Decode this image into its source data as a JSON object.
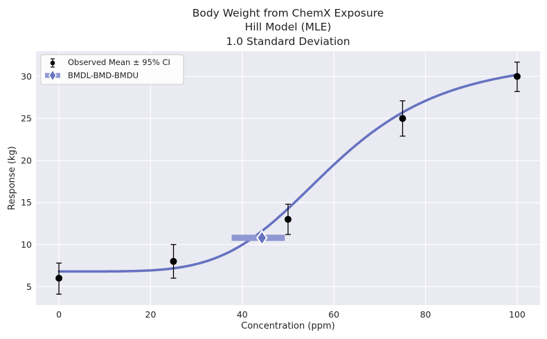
{
  "chart_data": {
    "type": "line",
    "title": [
      "Body Weight from ChemX Exposure",
      "Hill Model (MLE)",
      "1.0 Standard Deviation"
    ],
    "xlabel": "Concentration (ppm)",
    "ylabel": "Response (kg)",
    "xlim": [
      -5,
      105
    ],
    "ylim": [
      2.8,
      33
    ],
    "xticks": [
      0,
      20,
      40,
      60,
      80,
      100
    ],
    "yticks": [
      5,
      10,
      15,
      20,
      25,
      30
    ],
    "grid": true,
    "legend_position": "top-left",
    "legend": [
      "Observed Mean ± 95% CI",
      "BMDL-BMD-BMDU"
    ],
    "observed": {
      "name": "Observed Mean ± 95% CI",
      "x": [
        0,
        25,
        50,
        75,
        100
      ],
      "mean": [
        6.0,
        8.0,
        13.0,
        25.0,
        30.0
      ],
      "ci_lower": [
        4.1,
        6.0,
        11.2,
        22.9,
        28.2
      ],
      "ci_upper": [
        7.8,
        10.0,
        14.8,
        27.1,
        31.7
      ]
    },
    "model": {
      "name": "Hill",
      "background": 6.8,
      "vmax": 25.4,
      "ec50": 60.0,
      "n": 4.8,
      "x_range": [
        0,
        100
      ]
    },
    "bmd": {
      "name": "BMDL-BMD-BMDU",
      "bmdl": 37.7,
      "bmd": 44.3,
      "bmdu": 49.3,
      "response": 10.8
    },
    "colors": {
      "model_line": "#6672c0",
      "bmd_bar": "#8f98d2",
      "bmd_marker": "#6672c0",
      "points": "#000000",
      "plot_bg": "#eaeaf2",
      "grid": "#ffffff"
    }
  }
}
